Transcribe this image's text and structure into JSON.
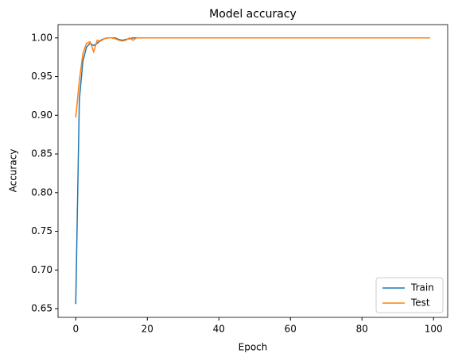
{
  "chart_data": {
    "type": "line",
    "title": "Model accuracy",
    "x_label": "Epoch",
    "y_label": "Accuracy",
    "x": [
      0,
      1,
      2,
      3,
      4,
      5,
      6,
      7,
      8,
      9,
      10,
      11,
      12,
      13,
      14,
      15,
      16,
      17,
      18,
      19,
      20,
      21,
      22,
      23,
      24,
      25,
      26,
      27,
      28,
      29,
      30,
      31,
      32,
      33,
      34,
      35,
      36,
      37,
      38,
      39,
      40,
      41,
      42,
      43,
      44,
      45,
      46,
      47,
      48,
      49,
      50,
      51,
      52,
      53,
      54,
      55,
      56,
      57,
      58,
      59,
      60,
      61,
      62,
      63,
      64,
      65,
      66,
      67,
      68,
      69,
      70,
      71,
      72,
      73,
      74,
      75,
      76,
      77,
      78,
      79,
      80,
      81,
      82,
      83,
      84,
      85,
      86,
      87,
      88,
      89,
      90,
      91,
      92,
      93,
      94,
      95,
      96,
      97,
      98,
      99
    ],
    "series": [
      {
        "name": "Train",
        "color": "#1f77b4",
        "values": [
          0.656,
          0.92,
          0.97,
          0.988,
          0.993,
          0.99,
          0.993,
          0.997,
          0.999,
          1.0,
          1.0,
          1.0,
          0.998,
          0.997,
          0.998,
          0.999,
          1.0,
          1,
          1,
          1,
          1,
          1,
          1,
          1,
          1,
          1,
          1,
          1,
          1,
          1,
          1,
          1,
          1,
          1,
          1,
          1,
          1,
          1,
          1,
          1,
          1,
          1,
          1,
          1,
          1,
          1,
          1,
          1,
          1,
          1,
          1,
          1,
          1,
          1,
          1,
          1,
          1,
          1,
          1,
          1,
          1,
          1,
          1,
          1,
          1,
          1,
          1,
          1,
          1,
          1,
          1,
          1,
          1,
          1,
          1,
          1,
          1,
          1,
          1,
          1,
          1,
          1,
          1,
          1,
          1,
          1,
          1,
          1,
          1,
          1,
          1,
          1,
          1,
          1,
          1,
          1,
          1,
          1,
          1,
          1
        ]
      },
      {
        "name": "Test",
        "color": "#ff7f0e",
        "values": [
          0.897,
          0.945,
          0.98,
          0.993,
          0.995,
          0.982,
          0.997,
          0.996,
          0.999,
          1.0,
          1.0,
          0.999,
          0.997,
          0.996,
          0.997,
          1.0,
          0.997,
          1.0,
          1,
          1,
          1,
          1,
          1,
          1,
          1,
          1,
          1,
          1,
          1,
          1,
          1,
          1,
          1,
          1,
          1,
          1,
          1,
          1,
          1,
          1,
          1,
          1,
          1,
          1,
          1,
          1,
          1,
          1,
          1,
          1,
          1,
          1,
          1,
          1,
          1,
          1,
          1,
          1,
          1,
          1,
          1,
          1,
          1,
          1,
          1,
          1,
          1,
          1,
          1,
          1,
          1,
          1,
          1,
          1,
          1,
          1,
          1,
          1,
          1,
          1,
          1,
          1,
          1,
          1,
          1,
          1,
          1,
          1,
          1,
          1,
          1,
          1,
          1,
          1,
          1,
          1,
          1,
          1,
          1,
          1
        ]
      }
    ],
    "xlim": [
      -4.95,
      103.95
    ],
    "ylim": [
      0.6388,
      1.0172
    ],
    "xticks": [
      0,
      20,
      40,
      60,
      80,
      100
    ],
    "yticks": [
      0.65,
      {
        "value": 0.7,
        "label": "0.70"
      },
      0.75,
      {
        "value": 0.8,
        "label": "0.80"
      },
      0.85,
      {
        "value": 0.9,
        "label": "0.90"
      },
      0.95,
      {
        "value": 1,
        "label": "1.00"
      }
    ],
    "legend": "lower right"
  }
}
